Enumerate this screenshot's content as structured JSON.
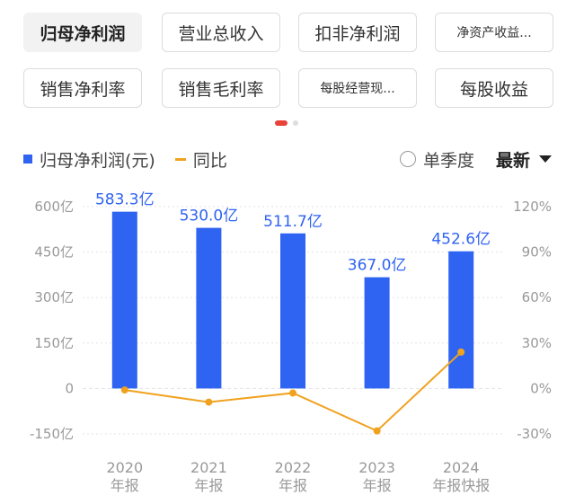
{
  "tabs": [
    {
      "label": "归母净利润",
      "active": true
    },
    {
      "label": "营业总收入",
      "active": false
    },
    {
      "label": "扣非净利润",
      "active": false
    },
    {
      "label": "净资产收益...",
      "active": false
    },
    {
      "label": "销售净利率",
      "active": false
    },
    {
      "label": "销售毛利率",
      "active": false
    },
    {
      "label": "每股经营现...",
      "active": false
    },
    {
      "label": "每股收益",
      "active": false
    }
  ],
  "legend": {
    "bar_label": "归母净利润(元)",
    "line_label": "同比"
  },
  "controls": {
    "season_label": "单季度",
    "latest_label": "最新"
  },
  "colors": {
    "bar": "#2f63f2",
    "line": "#f0a21f",
    "page_dot_active": "#e8423a",
    "page_dot": "#dddddd"
  },
  "chart_data": {
    "type": "bar",
    "categories": [
      {
        "year": "2020",
        "kind": "年报"
      },
      {
        "year": "2021",
        "kind": "年报"
      },
      {
        "year": "2022",
        "kind": "年报"
      },
      {
        "year": "2023",
        "kind": "年报"
      },
      {
        "year": "2024",
        "kind": "年报快报"
      }
    ],
    "series": [
      {
        "name": "归母净利润(元)",
        "type": "bar",
        "values": [
          583.3,
          530.0,
          511.7,
          367.0,
          452.6
        ],
        "labels": [
          "583.3亿",
          "530.0亿",
          "511.7亿",
          "367.0亿",
          "452.6亿"
        ]
      },
      {
        "name": "同比",
        "type": "line",
        "values": [
          -1,
          -9,
          -3,
          -28,
          24
        ]
      }
    ],
    "y_left": {
      "ticks": [
        600,
        450,
        300,
        150,
        0,
        -150
      ],
      "labels": [
        "600亿",
        "450亿",
        "300亿",
        "150亿",
        "0",
        "-150亿"
      ],
      "range": [
        -150,
        600
      ]
    },
    "y_right": {
      "ticks": [
        120,
        90,
        60,
        30,
        0,
        -30
      ],
      "labels": [
        "120%",
        "90%",
        "60%",
        "30%",
        "0%",
        "-30%"
      ],
      "range": [
        -30,
        120
      ]
    }
  }
}
